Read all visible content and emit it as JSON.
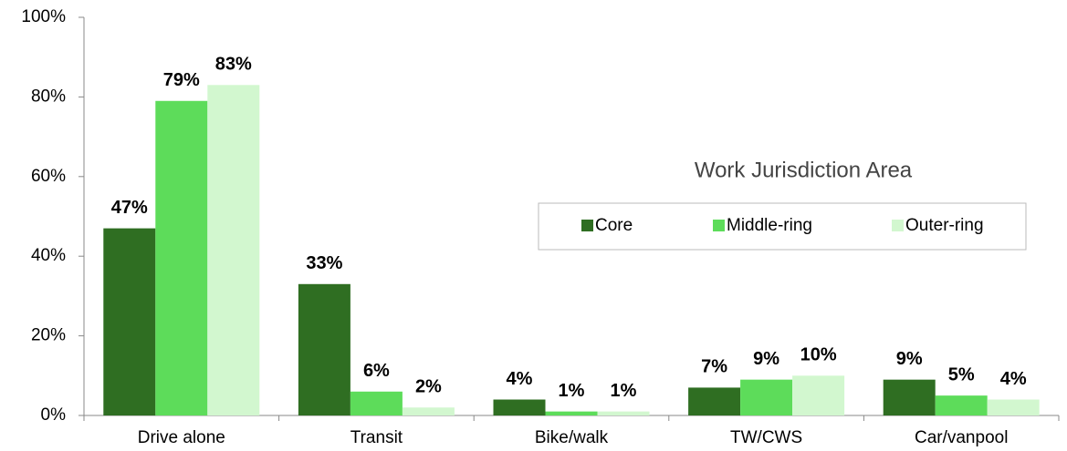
{
  "chart_data": {
    "type": "bar",
    "categories": [
      "Drive alone",
      "Transit",
      "Bike/walk",
      "TW/CWS",
      "Car/vanpool"
    ],
    "series": [
      {
        "name": "Core",
        "color": "#2f6e22",
        "values": [
          47,
          33,
          4,
          7,
          9
        ],
        "value_labels": [
          "47%",
          "33%",
          "4%",
          "7%",
          "9%"
        ]
      },
      {
        "name": "Middle-ring",
        "color": "#5ddc5a",
        "values": [
          79,
          6,
          1,
          9,
          5
        ],
        "value_labels": [
          "79%",
          "6%",
          "1%",
          "9%",
          "5%"
        ]
      },
      {
        "name": "Outer-ring",
        "color": "#d2f7cf",
        "values": [
          83,
          2,
          1,
          10,
          4
        ],
        "value_labels": [
          "83%",
          "2%",
          "1%",
          "10%",
          "4%"
        ]
      }
    ],
    "legend_title": "Work Jurisdiction Area",
    "ylim": [
      0,
      100
    ],
    "yticks": [
      {
        "value": 0,
        "label": "0%"
      },
      {
        "value": 20,
        "label": "20%"
      },
      {
        "value": 40,
        "label": "40%"
      },
      {
        "value": 60,
        "label": "60%"
      },
      {
        "value": 80,
        "label": "80%"
      },
      {
        "value": 100,
        "label": "100%"
      }
    ]
  }
}
